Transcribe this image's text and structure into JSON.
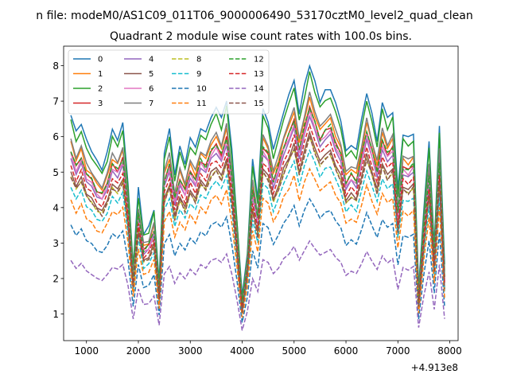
{
  "chart_data": {
    "type": "line",
    "suptitle": "n file: modeM0/AS1C09_011T06_9000006490_53170cztM0_level2_quad_clean",
    "title": "Quadrant 2 module wise count rates with 100.0s bins.",
    "xlabel": "",
    "ylabel": "",
    "x_offset_label": "+4.913e8",
    "xlim": [
      560,
      8160
    ],
    "ylim": [
      0.25,
      8.55
    ],
    "xticks": [
      "1000",
      "2000",
      "3000",
      "4000",
      "5000",
      "6000",
      "7000",
      "8000"
    ],
    "yticks": [
      "1",
      "2",
      "3",
      "4",
      "5",
      "6",
      "7",
      "8"
    ],
    "x": [
      700,
      800,
      900,
      1000,
      1100,
      1200,
      1300,
      1400,
      1500,
      1600,
      1700,
      1800,
      1900,
      2000,
      2100,
      2200,
      2300,
      2400,
      2500,
      2600,
      2700,
      2800,
      2900,
      3000,
      3100,
      3200,
      3300,
      3400,
      3500,
      3600,
      3700,
      3800,
      3900,
      4000,
      4100,
      4200,
      4300,
      4400,
      4500,
      4600,
      4700,
      4800,
      4900,
      5000,
      5100,
      5200,
      5300,
      5400,
      5500,
      5600,
      5700,
      5800,
      5900,
      6000,
      6100,
      6200,
      6300,
      6400,
      6500,
      6600,
      6700,
      6800,
      6900,
      7000,
      7100,
      7200,
      7300,
      7400,
      7500,
      7600,
      7700,
      7800,
      7900
    ],
    "profile": [
      1.0,
      0.92,
      0.97,
      0.88,
      0.85,
      0.8,
      0.78,
      0.84,
      0.93,
      0.9,
      0.96,
      0.72,
      0.35,
      0.68,
      0.5,
      0.52,
      0.6,
      0.28,
      0.85,
      0.93,
      0.75,
      0.86,
      0.8,
      0.9,
      0.85,
      0.95,
      0.92,
      1.0,
      1.03,
      0.98,
      1.07,
      0.85,
      0.55,
      0.22,
      0.42,
      0.8,
      0.65,
      1.02,
      0.98,
      0.85,
      0.92,
      1.02,
      1.08,
      1.16,
      1.0,
      1.12,
      1.22,
      1.14,
      1.06,
      1.1,
      1.12,
      1.04,
      0.98,
      0.84,
      0.88,
      0.85,
      0.97,
      1.1,
      1.0,
      0.9,
      1.05,
      0.98,
      1.02,
      0.68,
      0.92,
      0.9,
      0.93,
      0.25,
      0.6,
      0.88,
      0.45,
      0.95,
      0.35
    ],
    "wiggle": [
      0.0,
      0.15,
      -0.1,
      0.2,
      -0.05,
      0.1,
      -0.15,
      0.05,
      0.12,
      -0.08,
      0.1,
      -0.12,
      0.05,
      0.15,
      -0.1,
      0.08,
      -0.05,
      0.1,
      -0.12,
      0.15,
      -0.05,
      0.1,
      -0.1,
      0.05,
      0.15,
      -0.08,
      0.1,
      -0.12,
      0.05,
      0.12,
      -0.1,
      0.08,
      -0.05,
      0.1,
      -0.12,
      0.15,
      -0.05,
      0.1,
      -0.1,
      0.05,
      0.15,
      -0.08,
      0.1,
      -0.12,
      0.05,
      0.12,
      -0.1,
      0.08,
      -0.05,
      0.1,
      -0.12,
      0.15,
      -0.05,
      0.1,
      -0.1,
      0.05,
      0.15,
      -0.08,
      0.1,
      -0.12,
      0.05,
      0.12,
      -0.1,
      0.08,
      -0.05,
      0.1,
      -0.12,
      0.15,
      -0.05,
      0.1,
      -0.1,
      0.05,
      0.15
    ],
    "series": [
      {
        "name": "0",
        "color": "#1f77b4",
        "dash": "solid",
        "base": 6.6,
        "jitter": 1.0
      },
      {
        "name": "1",
        "color": "#ff7f0e",
        "dash": "solid",
        "base": 5.8,
        "jitter": 0.6
      },
      {
        "name": "2",
        "color": "#2ca02c",
        "dash": "solid",
        "base": 6.4,
        "jitter": -0.9
      },
      {
        "name": "3",
        "color": "#d62728",
        "dash": "solid",
        "base": 5.6,
        "jitter": 0.5
      },
      {
        "name": "4",
        "color": "#9467bd",
        "dash": "solid",
        "base": 5.4,
        "jitter": -0.4
      },
      {
        "name": "5",
        "color": "#8c564b",
        "dash": "solid",
        "base": 5.0,
        "jitter": 0.3
      },
      {
        "name": "6",
        "color": "#e377c2",
        "dash": "solid",
        "base": 5.5,
        "jitter": -0.6
      },
      {
        "name": "7",
        "color": "#7f7f7f",
        "dash": "solid",
        "base": 5.9,
        "jitter": 0.7
      },
      {
        "name": "8",
        "color": "#bcbd22",
        "dash": "dashed",
        "base": 4.9,
        "jitter": -0.3
      },
      {
        "name": "9",
        "color": "#17becf",
        "dash": "dashed",
        "base": 4.6,
        "jitter": 0.4
      },
      {
        "name": "10",
        "color": "#1f77b4",
        "dash": "dashed",
        "base": 3.5,
        "jitter": -0.2
      },
      {
        "name": "11",
        "color": "#ff7f0e",
        "dash": "dashed",
        "base": 4.2,
        "jitter": 0.35
      },
      {
        "name": "12",
        "color": "#2ca02c",
        "dash": "dashed",
        "base": 5.6,
        "jitter": 0.8
      },
      {
        "name": "13",
        "color": "#d62728",
        "dash": "dashed",
        "base": 5.2,
        "jitter": -0.5
      },
      {
        "name": "14",
        "color": "#9467bd",
        "dash": "dashed",
        "base": 2.5,
        "jitter": 0.2
      },
      {
        "name": "15",
        "color": "#8c564b",
        "dash": "dashed",
        "base": 4.9,
        "jitter": -0.7
      }
    ]
  }
}
